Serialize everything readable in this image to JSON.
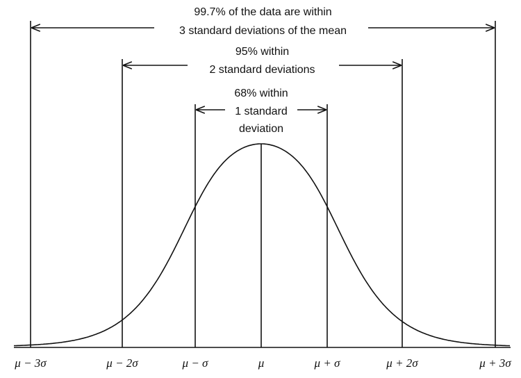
{
  "annotations": [
    {
      "lines": [
        "99.7% of the data are within",
        "3 standard deviations of the mean"
      ]
    },
    {
      "lines": [
        "95% within",
        "2 standard deviations"
      ]
    },
    {
      "lines": [
        "68% within",
        "1 standard",
        "deviation"
      ]
    }
  ],
  "x_labels": [
    "μ − 3σ",
    "μ − 2σ",
    "μ − σ",
    "μ",
    "μ + σ",
    "μ + 2σ",
    "μ + 3σ"
  ]
}
